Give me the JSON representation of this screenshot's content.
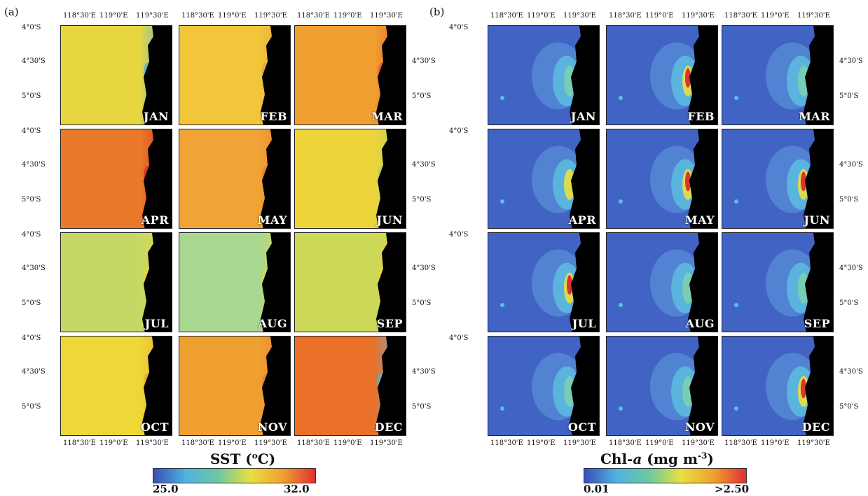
{
  "panels": [
    {
      "label": "(a)",
      "variable": "sst",
      "lon_ticks": [
        "118°30'E",
        "119°0'E",
        "119°30'E"
      ],
      "lat_ticks": [
        "4°0'S",
        "4°30'S",
        "5°0'S"
      ],
      "months": [
        {
          "name": "JAN",
          "base": "#e8d640",
          "coast": "#4fb3e0"
        },
        {
          "name": "FEB",
          "base": "#f2c63a",
          "coast": "#e0a040"
        },
        {
          "name": "MAR",
          "base": "#f0a030",
          "coast": "#e8602a"
        },
        {
          "name": "APR",
          "base": "#ea7a2a",
          "coast": "#d83020"
        },
        {
          "name": "MAY",
          "base": "#f0a436",
          "coast": "#e88030"
        },
        {
          "name": "JUN",
          "base": "#ecd43a",
          "coast": "#b8d060"
        },
        {
          "name": "JUL",
          "base": "#c6d864",
          "coast": "#e8d640"
        },
        {
          "name": "AUG",
          "base": "#a8d890",
          "coast": "#d8d850"
        },
        {
          "name": "SEP",
          "base": "#ccd858",
          "coast": "#e8d640"
        },
        {
          "name": "OCT",
          "base": "#eed838",
          "coast": "#e8a83a"
        },
        {
          "name": "NOV",
          "base": "#f0a030",
          "coast": "#e88030"
        },
        {
          "name": "DEC",
          "base": "#ea7028",
          "coast": "#58b8e0"
        }
      ],
      "colorbar": {
        "title": "SST (",
        "title_sup": "o",
        "title_end": "C)",
        "min": "25.0",
        "max": "32.0",
        "colors": [
          "#3a4fb8",
          "#4fb3e0",
          "#6cc8a0",
          "#e8e040",
          "#f0a030",
          "#e03030"
        ]
      }
    },
    {
      "label": "(b)",
      "variable": "chl",
      "lon_ticks": [
        "118°30'E",
        "119°0'E",
        "119°30'E"
      ],
      "lat_ticks": [
        "4°0'S",
        "4°30'S",
        "5°0'S"
      ],
      "months": [
        {
          "name": "JAN",
          "bloom": 0.35
        },
        {
          "name": "FEB",
          "bloom": 0.85
        },
        {
          "name": "MAR",
          "bloom": 0.45
        },
        {
          "name": "APR",
          "bloom": 0.6
        },
        {
          "name": "MAY",
          "bloom": 0.8
        },
        {
          "name": "JUN",
          "bloom": 0.95
        },
        {
          "name": "JUL",
          "bloom": 0.9
        },
        {
          "name": "AUG",
          "bloom": 0.45
        },
        {
          "name": "SEP",
          "bloom": 0.45
        },
        {
          "name": "OCT",
          "bloom": 0.3
        },
        {
          "name": "NOV",
          "bloom": 0.25
        },
        {
          "name": "DEC",
          "bloom": 0.75
        }
      ],
      "colorbar": {
        "title": "Chl-",
        "title_ital": "a",
        "title_mid": " (mg m",
        "title_sup": "-3",
        "title_end": ")",
        "min": "0.01",
        "max": ">2.50",
        "colors": [
          "#3a4fb8",
          "#4fb3e0",
          "#6cc8a0",
          "#e8e040",
          "#f0a030",
          "#e03030"
        ]
      }
    }
  ]
}
